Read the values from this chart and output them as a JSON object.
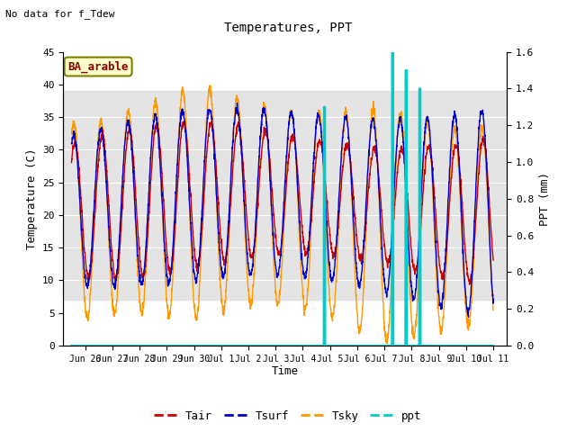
{
  "title": "Temperatures, PPT",
  "subtitle": "No data for f_Tdew",
  "station_label": "BA_arable",
  "xlabel": "Time",
  "ylabel_left": "Temperature (C)",
  "ylabel_right": "PPT (mm)",
  "ylim_left": [
    0,
    45
  ],
  "ylim_right": [
    0.0,
    1.6
  ],
  "yticks_left": [
    0,
    5,
    10,
    15,
    20,
    25,
    30,
    35,
    40,
    45
  ],
  "yticks_right": [
    0.0,
    0.2,
    0.4,
    0.6,
    0.8,
    1.0,
    1.2,
    1.4,
    1.6
  ],
  "shaded_region": [
    7,
    39
  ],
  "colors": {
    "Tair": "#cc0000",
    "Tsurf": "#0000cc",
    "Tsky": "#ff9900",
    "ppt": "#00cccc",
    "shade": "#d3d3d3"
  },
  "xtick_labels": [
    "Jun 26",
    "Jun 27",
    "Jun 28",
    "Jun 29",
    "Jun 30",
    "Jul 1",
    "Jul 2",
    "Jul 3",
    "Jul 4",
    "Jul 5",
    "Jul 6",
    "Jul 7",
    "Jul 8",
    "Jul 9",
    "Jul 10",
    "Jul 11"
  ],
  "n_days": 16
}
